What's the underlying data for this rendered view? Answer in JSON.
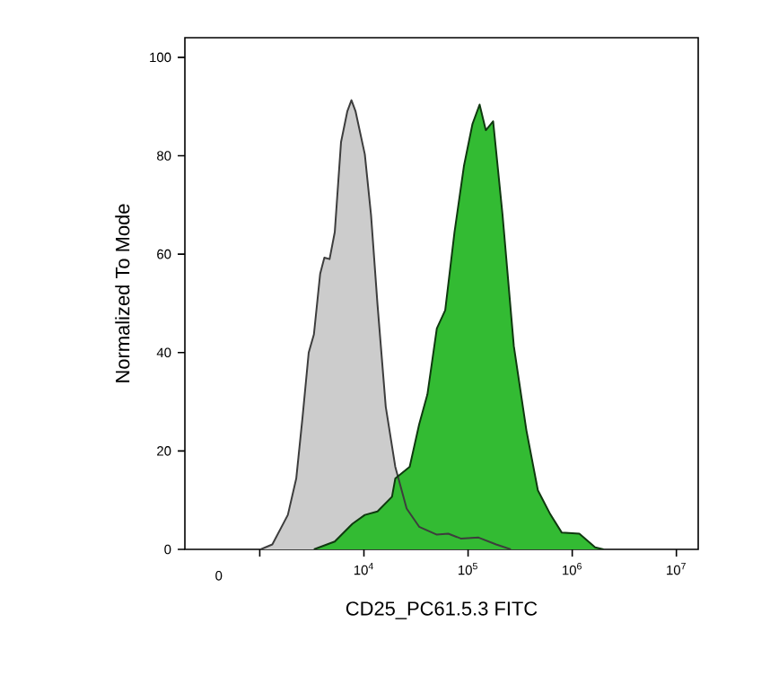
{
  "chart_data": {
    "type": "area",
    "xlabel": "CD25_PC61.5.3 FITC",
    "ylabel": "Normalized To Mode",
    "log": "x",
    "xlim": [
      191,
      16200000
    ],
    "ylim": [
      0,
      104
    ],
    "xticks": [
      {
        "value": 1000,
        "label": null
      },
      {
        "value": 10000,
        "label": "10$^{4}$"
      },
      {
        "value": 100000,
        "label": "10$^{5}$"
      },
      {
        "value": 1000000,
        "label": "10$^{6}$"
      },
      {
        "value": 10000000,
        "label": "10$^{7}$"
      }
    ],
    "yticks": [
      0,
      20,
      40,
      60,
      80,
      100
    ],
    "annotations": [
      "0"
    ],
    "grid": false,
    "series": [
      {
        "color": "#cccccc",
        "x": [
          1020,
          1320,
          1860,
          2240,
          2570,
          2950,
          3310,
          3800,
          4170,
          4680,
          5250,
          6030,
          6920,
          7590,
          8320,
          10200,
          11700,
          13500,
          16200,
          20000,
          25700,
          33900,
          50100,
          64600,
          85100,
          126000,
          186000,
          257000
        ],
        "values": [
          0,
          1,
          7,
          14.4,
          26.7,
          40,
          43.7,
          56,
          59.3,
          59,
          64.5,
          82.8,
          89,
          91.3,
          89,
          80.3,
          68,
          49.8,
          29,
          16.8,
          8.3,
          4.6,
          3,
          3.2,
          2.2,
          2.4,
          1,
          0
        ]
      },
      {
        "color": "#33bb33",
        "x": [
          3310,
          5250,
          7760,
          10200,
          13500,
          18600,
          20000,
          27500,
          33900,
          40700,
          50100,
          60300,
          74100,
          91200,
          110000,
          129000,
          148000,
          174000,
          214000,
          275000,
          363000,
          468000,
          617000,
          794000,
          1170000,
          1660000,
          2000000
        ],
        "values": [
          0,
          1.6,
          5.2,
          7,
          7.7,
          10.7,
          14.4,
          16.8,
          25.4,
          31.5,
          44.9,
          48.6,
          64.5,
          77.9,
          86.4,
          90.4,
          85.2,
          87,
          68.1,
          41.3,
          24.2,
          12,
          7.1,
          3.4,
          3.2,
          0.4,
          0
        ]
      }
    ]
  }
}
